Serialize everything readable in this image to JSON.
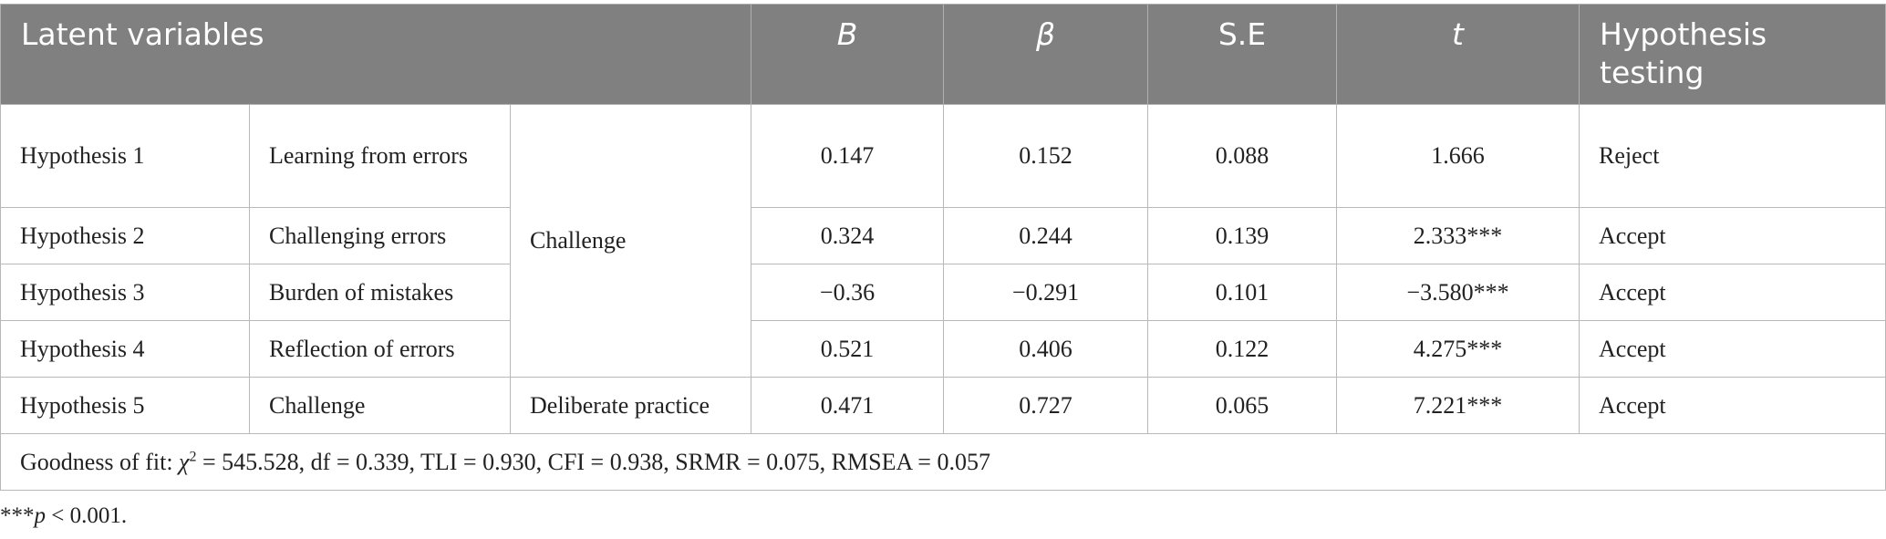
{
  "header": {
    "latent_variables": "Latent variables",
    "b": "B",
    "beta": "β",
    "se": "S.E",
    "t": "t",
    "hypothesis_testing_line1": "Hypothesis",
    "hypothesis_testing_line2": "testing"
  },
  "rows": [
    {
      "hypothesis": "Hypothesis 1",
      "predictor": "Learning from errors",
      "b": "0.147",
      "beta": "0.152",
      "se": "0.088",
      "t": "1.666",
      "result": "Reject"
    },
    {
      "hypothesis": "Hypothesis 2",
      "predictor": "Challenging errors",
      "b": "0.324",
      "beta": "0.244",
      "se": "0.139",
      "t": "2.333***",
      "result": "Accept"
    },
    {
      "hypothesis": "Hypothesis 3",
      "predictor": "Burden of mistakes",
      "b": "−0.36",
      "beta": "−0.291",
      "se": "0.101",
      "t": "−3.580***",
      "result": "Accept"
    },
    {
      "hypothesis": "Hypothesis 4",
      "predictor": "Reflection of errors",
      "b": "0.521",
      "beta": "0.406",
      "se": "0.122",
      "t": "4.275***",
      "result": "Accept"
    },
    {
      "hypothesis": "Hypothesis 5",
      "predictor": "Challenge",
      "outcome": "Deliberate practice",
      "b": "0.471",
      "beta": "0.727",
      "se": "0.065",
      "t": "7.221***",
      "result": "Accept"
    }
  ],
  "outcome_group": "Challenge",
  "fit": {
    "prefix": "Goodness of fit: ",
    "chi_symbol": "χ",
    "chi_exp": "2",
    "rest": " = 545.528, df = 0.339, TLI = 0.930, CFI = 0.938, SRMR = 0.075, RMSEA = 0.057"
  },
  "note": {
    "stars": "***",
    "p": "p",
    "rest": " < 0.001."
  }
}
